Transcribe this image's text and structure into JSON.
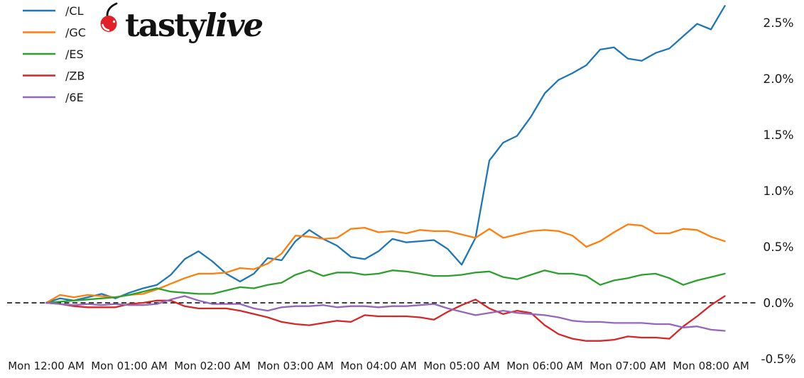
{
  "logo": {
    "brand_regular": "tasty",
    "brand_italic": "live",
    "cherry_color": "#e02128",
    "stem_color": "#111111"
  },
  "legend": [
    {
      "label": "/CL",
      "color": "#1f77b4"
    },
    {
      "label": "/GC",
      "color": "#ff7f0e"
    },
    {
      "label": "/ES",
      "color": "#2ca02c"
    },
    {
      "label": "/ZB",
      "color": "#d62728"
    },
    {
      "label": "/6E",
      "color": "#9467bd"
    }
  ],
  "axes": {
    "y_ticks": [
      "2.5%",
      "2.0%",
      "1.5%",
      "1.0%",
      "0.5%",
      "0.0%",
      "-0.5%"
    ],
    "y_tick_values": [
      2.5,
      2.0,
      1.5,
      1.0,
      0.5,
      0.0,
      -0.5
    ],
    "x_ticks": [
      "Mon 12:00 AM",
      "Mon 01:00 AM",
      "Mon 02:00 AM",
      "Mon 03:00 AM",
      "Mon 04:00 AM",
      "Mon 05:00 AM",
      "Mon 06:00 AM",
      "Mon 07:00 AM",
      "Mon 08:00 AM"
    ]
  },
  "chart_data": {
    "type": "line",
    "title": "",
    "xlabel": "",
    "ylabel": "",
    "y_unit": "percent_change",
    "ylim": [
      -0.5,
      2.75
    ],
    "grid": false,
    "zero_line": "dashed-black",
    "legend_position": "upper-left",
    "x_times": [
      "00:00",
      "00:10",
      "00:20",
      "00:30",
      "00:40",
      "00:50",
      "01:00",
      "01:10",
      "01:20",
      "01:30",
      "01:40",
      "01:50",
      "02:00",
      "02:10",
      "02:20",
      "02:30",
      "02:40",
      "02:50",
      "03:00",
      "03:10",
      "03:20",
      "03:30",
      "03:40",
      "03:50",
      "04:00",
      "04:10",
      "04:20",
      "04:30",
      "04:40",
      "04:50",
      "05:00",
      "05:10",
      "05:20",
      "05:30",
      "05:40",
      "05:50",
      "06:00",
      "06:10",
      "06:20",
      "06:30",
      "06:40",
      "06:50",
      "07:00",
      "07:10",
      "07:20",
      "07:30",
      "07:40",
      "07:50",
      "08:00",
      "08:10"
    ],
    "series": [
      {
        "name": "/CL",
        "color": "#1f77b4",
        "values": [
          0.0,
          0.04,
          0.02,
          0.05,
          0.08,
          0.04,
          0.09,
          0.13,
          0.16,
          0.25,
          0.39,
          0.46,
          0.37,
          0.26,
          0.19,
          0.26,
          0.4,
          0.38,
          0.55,
          0.65,
          0.57,
          0.51,
          0.41,
          0.39,
          0.46,
          0.57,
          0.54,
          0.55,
          0.56,
          0.48,
          0.34,
          0.58,
          1.27,
          1.43,
          1.49,
          1.66,
          1.87,
          1.99,
          2.05,
          2.12,
          2.26,
          2.28,
          2.18,
          2.16,
          2.23,
          2.27,
          2.38,
          2.49,
          2.44,
          2.65
        ]
      },
      {
        "name": "/GC",
        "color": "#ff7f0e",
        "values": [
          0.0,
          0.07,
          0.05,
          0.07,
          0.06,
          0.05,
          0.07,
          0.08,
          0.12,
          0.17,
          0.22,
          0.26,
          0.26,
          0.27,
          0.31,
          0.3,
          0.35,
          0.44,
          0.6,
          0.59,
          0.57,
          0.58,
          0.66,
          0.67,
          0.63,
          0.64,
          0.62,
          0.65,
          0.64,
          0.64,
          0.61,
          0.58,
          0.66,
          0.58,
          0.61,
          0.64,
          0.65,
          0.64,
          0.6,
          0.5,
          0.55,
          0.63,
          0.7,
          0.69,
          0.62,
          0.62,
          0.66,
          0.65,
          0.59,
          0.55
        ]
      },
      {
        "name": "/ES",
        "color": "#2ca02c",
        "values": [
          0.0,
          0.01,
          0.02,
          0.03,
          0.04,
          0.05,
          0.07,
          0.1,
          0.13,
          0.1,
          0.09,
          0.08,
          0.08,
          0.11,
          0.14,
          0.13,
          0.16,
          0.18,
          0.25,
          0.29,
          0.24,
          0.27,
          0.27,
          0.25,
          0.26,
          0.29,
          0.28,
          0.26,
          0.24,
          0.24,
          0.25,
          0.27,
          0.28,
          0.23,
          0.21,
          0.25,
          0.29,
          0.26,
          0.26,
          0.24,
          0.16,
          0.2,
          0.22,
          0.25,
          0.26,
          0.22,
          0.16,
          0.2,
          0.23,
          0.26
        ]
      },
      {
        "name": "/ZB",
        "color": "#d62728",
        "values": [
          0.0,
          -0.01,
          -0.03,
          -0.04,
          -0.04,
          -0.04,
          -0.01,
          0.0,
          0.02,
          0.02,
          -0.03,
          -0.05,
          -0.05,
          -0.05,
          -0.07,
          -0.1,
          -0.13,
          -0.17,
          -0.19,
          -0.2,
          -0.18,
          -0.16,
          -0.17,
          -0.11,
          -0.12,
          -0.12,
          -0.12,
          -0.13,
          -0.15,
          -0.08,
          -0.02,
          0.03,
          -0.05,
          -0.1,
          -0.07,
          -0.09,
          -0.2,
          -0.28,
          -0.32,
          -0.34,
          -0.34,
          -0.33,
          -0.3,
          -0.31,
          -0.31,
          -0.32,
          -0.21,
          -0.12,
          -0.02,
          0.06
        ]
      },
      {
        "name": "/6E",
        "color": "#9467bd",
        "values": [
          0.0,
          -0.01,
          -0.02,
          -0.01,
          -0.02,
          -0.01,
          -0.02,
          -0.02,
          -0.01,
          0.03,
          0.06,
          0.02,
          -0.01,
          -0.01,
          -0.01,
          -0.05,
          -0.07,
          -0.04,
          -0.03,
          -0.03,
          -0.02,
          -0.04,
          -0.03,
          -0.03,
          -0.04,
          -0.03,
          -0.03,
          -0.02,
          -0.01,
          -0.05,
          -0.08,
          -0.11,
          -0.09,
          -0.07,
          -0.09,
          -0.1,
          -0.11,
          -0.13,
          -0.16,
          -0.17,
          -0.17,
          -0.18,
          -0.18,
          -0.18,
          -0.19,
          -0.19,
          -0.22,
          -0.21,
          -0.24,
          -0.25
        ]
      }
    ]
  }
}
